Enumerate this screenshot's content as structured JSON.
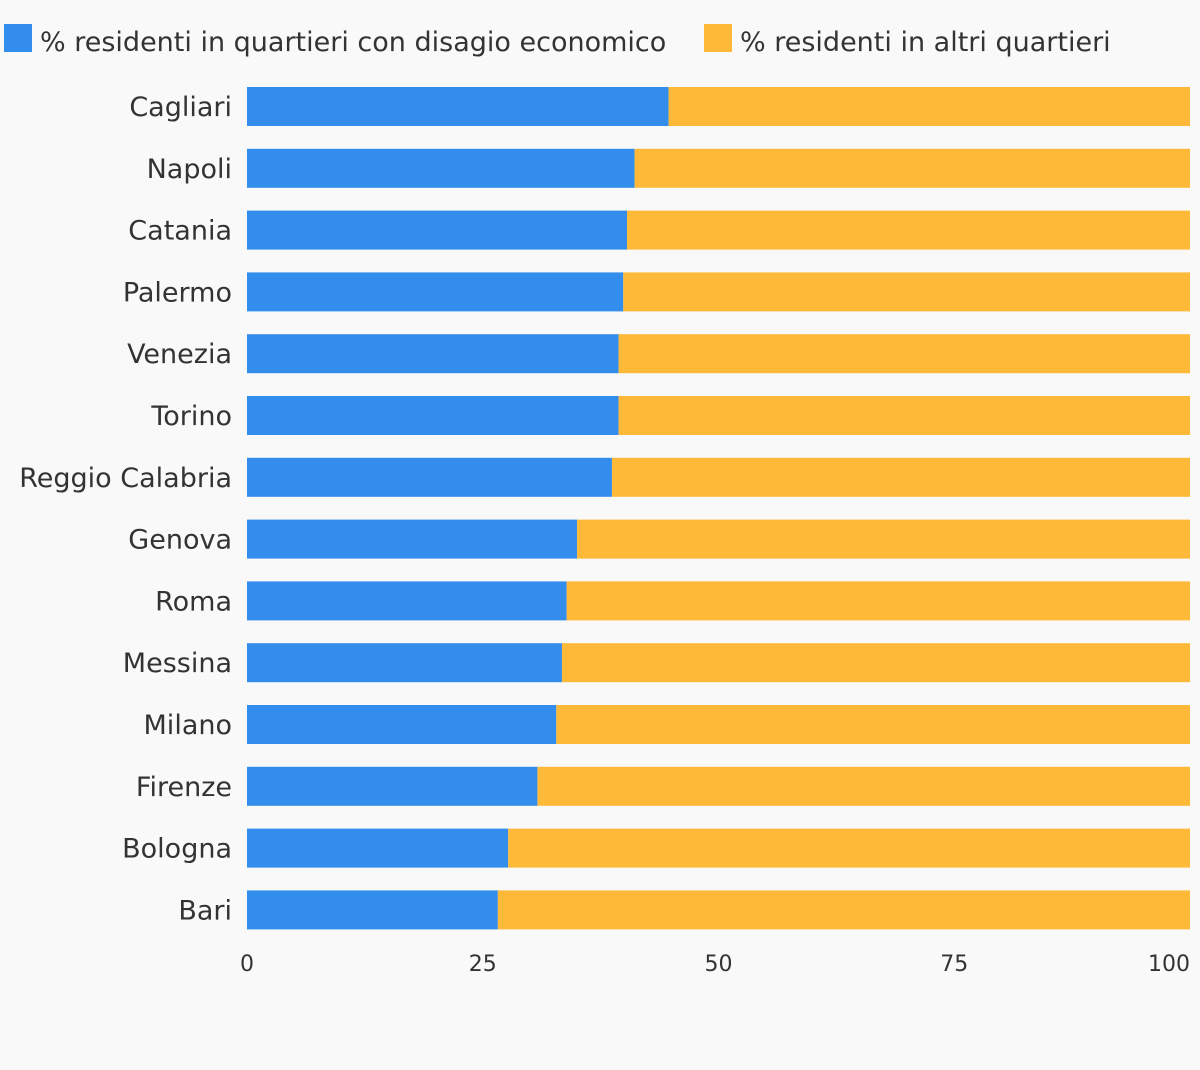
{
  "colors": {
    "background": "#f9f9f9",
    "series_1": "#338ded",
    "series_2": "#ffb938",
    "text": "#333333"
  },
  "legend": {
    "position": "top-left",
    "items": [
      "% residenti in quartieri con disagio economico",
      "% residenti in altri quartieri"
    ]
  },
  "chart_data": {
    "type": "bar",
    "orientation": "horizontal",
    "stacked": true,
    "categories": [
      "Cagliari",
      "Napoli",
      "Catania",
      "Palermo",
      "Venezia",
      "Torino",
      "Reggio Calabria",
      "Genova",
      "Roma",
      "Messina",
      "Milano",
      "Firenze",
      "Bologna",
      "Bari"
    ],
    "series": [
      {
        "name": "% residenti in quartieri con disagio economico",
        "color": "#338ded",
        "values": [
          44.7,
          41.1,
          40.3,
          39.9,
          39.4,
          39.4,
          38.7,
          35.0,
          33.9,
          33.4,
          32.8,
          30.8,
          27.7,
          26.6
        ]
      },
      {
        "name": "% residenti in altri quartieri",
        "color": "#ffb938",
        "values": [
          55.3,
          58.9,
          59.7,
          60.1,
          60.6,
          60.6,
          61.3,
          65.0,
          66.1,
          66.6,
          67.2,
          69.2,
          72.3,
          73.4
        ]
      }
    ],
    "xlim": [
      0,
      100
    ],
    "xticks": [
      "0",
      "25",
      "50",
      "75",
      "100"
    ],
    "title": "",
    "xlabel": "",
    "ylabel": "",
    "grid": false
  }
}
